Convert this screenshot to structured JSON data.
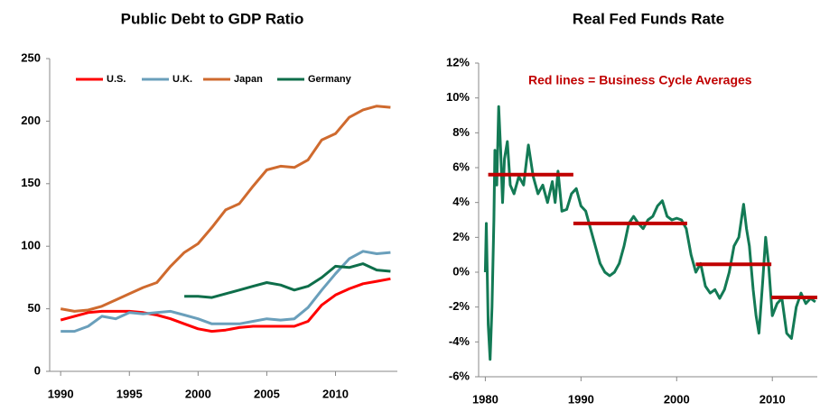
{
  "chart_data": [
    {
      "type": "line",
      "title": "Public Debt to GDP Ratio",
      "x": [
        1990,
        1991,
        1992,
        1993,
        1994,
        1995,
        1996,
        1997,
        1998,
        1999,
        2000,
        2001,
        2002,
        2003,
        2004,
        2005,
        2006,
        2007,
        2008,
        2009,
        2010,
        2011,
        2012,
        2013,
        2014
      ],
      "series": [
        {
          "name": "U.S.",
          "color": "#ff0000",
          "values": [
            41,
            44,
            47,
            48,
            48,
            48,
            47,
            45,
            42,
            38,
            34,
            32,
            33,
            35,
            36,
            36,
            36,
            36,
            40,
            53,
            61,
            66,
            70,
            72,
            74
          ]
        },
        {
          "name": "U.K.",
          "color": "#6a9fbb",
          "values": [
            32,
            32,
            36,
            44,
            42,
            47,
            46,
            47,
            48,
            45,
            42,
            38,
            38,
            38,
            40,
            42,
            41,
            42,
            51,
            65,
            78,
            90,
            96,
            94,
            95
          ]
        },
        {
          "name": "Japan",
          "color": "#cf6a2e",
          "values": [
            50,
            48,
            49,
            52,
            57,
            62,
            67,
            71,
            84,
            95,
            102,
            115,
            129,
            134,
            148,
            161,
            164,
            163,
            169,
            185,
            190,
            203,
            209,
            212,
            211
          ]
        },
        {
          "name": "Germany",
          "color": "#0e6e4a",
          "values": [
            null,
            null,
            null,
            null,
            null,
            null,
            null,
            null,
            null,
            60,
            60,
            59,
            62,
            65,
            68,
            71,
            69,
            65,
            68,
            75,
            84,
            83,
            86,
            81,
            80
          ]
        }
      ],
      "xlim": [
        1989.2,
        2014.5
      ],
      "xticks": [
        1990,
        1995,
        2000,
        2005,
        2010
      ],
      "ylim": [
        0,
        250
      ],
      "yticks": [
        0,
        50,
        100,
        150,
        200,
        250
      ],
      "legend": "top"
    },
    {
      "type": "line",
      "title": "Real Fed Funds Rate",
      "annotation": "Red lines =  Business Cycle Averages",
      "x": [
        1980.0,
        1980.1,
        1980.3,
        1980.5,
        1980.7,
        1980.9,
        1981.0,
        1981.2,
        1981.4,
        1981.6,
        1981.8,
        1982.0,
        1982.3,
        1982.6,
        1983.0,
        1983.5,
        1984.0,
        1984.5,
        1985.0,
        1985.5,
        1986.0,
        1986.5,
        1987.0,
        1987.3,
        1987.6,
        1988.0,
        1988.5,
        1989.0,
        1989.5,
        1990.0,
        1990.5,
        1991.0,
        1991.5,
        1992.0,
        1992.5,
        1993.0,
        1993.5,
        1994.0,
        1994.5,
        1995.0,
        1995.5,
        1996.0,
        1996.5,
        1997.0,
        1997.5,
        1998.0,
        1998.5,
        1999.0,
        1999.5,
        2000.0,
        2000.5,
        2001.0,
        2001.5,
        2002.0,
        2002.5,
        2003.0,
        2003.5,
        2004.0,
        2004.5,
        2005.0,
        2005.5,
        2006.0,
        2006.5,
        2007.0,
        2007.3,
        2007.6,
        2008.0,
        2008.3,
        2008.6,
        2009.0,
        2009.3,
        2009.6,
        2010.0,
        2010.5,
        2011.0,
        2011.5,
        2012.0,
        2012.5,
        2013.0,
        2013.5,
        2014.0,
        2014.5
      ],
      "series": [
        {
          "color": "#137a55",
          "values": [
            0,
            2.8,
            -3,
            -5,
            -2,
            3,
            7,
            5,
            9.5,
            7,
            4,
            6.5,
            7.5,
            5,
            4.5,
            5.5,
            5,
            7.3,
            5.5,
            4.5,
            5,
            4,
            5.2,
            4,
            5.8,
            3.5,
            3.6,
            4.5,
            4.8,
            3.8,
            3.5,
            2.5,
            1.5,
            0.5,
            0,
            -0.2,
            0,
            0.5,
            1.5,
            2.8,
            3.2,
            2.8,
            2.5,
            3,
            3.2,
            3.8,
            4.1,
            3.2,
            3,
            3.1,
            3,
            2.5,
            1,
            0,
            0.5,
            -0.8,
            -1.2,
            -1,
            -1.5,
            -1,
            0,
            1.5,
            2,
            3.9,
            2.5,
            1.5,
            -1,
            -2.5,
            -3.5,
            -0.5,
            2,
            0.5,
            -2.5,
            -1.8,
            -1.5,
            -3.5,
            -3.8,
            -2,
            -1.2,
            -1.8,
            -1.5,
            -1.7
          ]
        }
      ],
      "averages": {
        "color": "#c00000",
        "segments": [
          {
            "start": 1980.3,
            "end": 1989.2,
            "value": 5.6
          },
          {
            "start": 1989.2,
            "end": 2001.1,
            "value": 2.8
          },
          {
            "start": 2002.0,
            "end": 2009.9,
            "value": 0.45
          },
          {
            "start": 2009.9,
            "end": 2014.7,
            "value": -1.45
          }
        ]
      },
      "xlim": [
        1979.3,
        2014.7
      ],
      "xticks": [
        1980,
        1990,
        2000,
        2010
      ],
      "ylim": [
        -6,
        12
      ],
      "yticks": [
        {
          "value": -6,
          "label": "-6%"
        },
        {
          "value": -4,
          "label": "-4%"
        },
        {
          "value": -2,
          "label": "-2%"
        },
        {
          "value": 0,
          "label": "0%"
        },
        {
          "value": 2,
          "label": "2%"
        },
        {
          "value": 4,
          "label": "4%"
        },
        {
          "value": 6,
          "label": "6%"
        },
        {
          "value": 8,
          "label": "8%"
        },
        {
          "value": 10,
          "label": "10%"
        },
        {
          "value": 12,
          "label": "12%"
        }
      ]
    }
  ]
}
